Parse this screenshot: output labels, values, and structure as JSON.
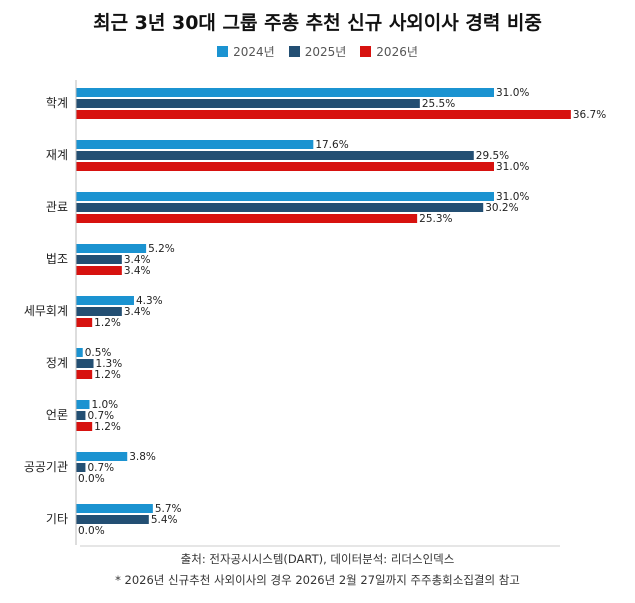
{
  "chart_data": {
    "type": "bar",
    "orientation": "horizontal",
    "title": "최근 3년 30대 그룹 주총 추천 신규 사외이사 경력 비중",
    "categories": [
      "학계",
      "재계",
      "관료",
      "법조",
      "세무회계",
      "정계",
      "언론",
      "공공기관",
      "기타"
    ],
    "series": [
      {
        "name": "2024년",
        "color": "#1b93d1",
        "values": [
          31.0,
          17.6,
          31.0,
          5.2,
          4.3,
          0.5,
          1.0,
          3.8,
          5.7
        ]
      },
      {
        "name": "2025년",
        "color": "#234f73",
        "values": [
          25.5,
          29.5,
          30.2,
          3.4,
          3.4,
          1.3,
          0.7,
          0.7,
          5.4
        ]
      },
      {
        "name": "2026년",
        "color": "#d7120f",
        "values": [
          36.7,
          31.0,
          25.3,
          3.4,
          1.2,
          1.2,
          1.2,
          0.0,
          0.0
        ]
      }
    ],
    "value_suffix": "%",
    "xlim": [
      0,
      40
    ],
    "grid": false,
    "legend_position": "top"
  },
  "footer": {
    "source": "출처: 전자공시시스템(DART), 데이터분석: 리더스인덱스",
    "note": "* 2026년 신규추천 사외이사의 경우 2026년 2월 27일까지 주주총회소집결의 참고"
  }
}
